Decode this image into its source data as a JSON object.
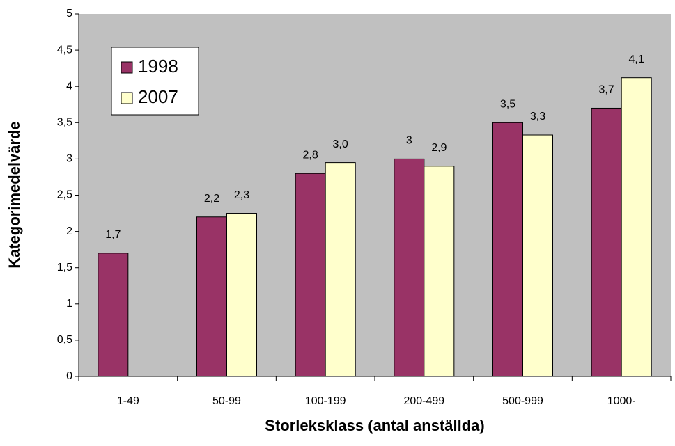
{
  "chart_data": {
    "type": "bar",
    "xlabel": "Storleksklass (antal anställda)",
    "ylabel": "Kategorimedelvärde",
    "categories": [
      "1-49",
      "50-99",
      "100-199",
      "200-499",
      "500-999",
      "1000-"
    ],
    "series": [
      {
        "name": "1998",
        "color": "#993366",
        "values": [
          1.7,
          2.2,
          2.8,
          3,
          3.5,
          3.7
        ],
        "value_labels": [
          "1,7",
          "2,2",
          "2,8",
          "3",
          "3,5",
          "3,7"
        ]
      },
      {
        "name": "2007",
        "color": "#ffffcc",
        "values": [
          null,
          2.25,
          2.95,
          2.9,
          3.33,
          4.12
        ],
        "value_labels": [
          null,
          "2,3",
          "3,0",
          "2,9",
          "3,3",
          "4,1"
        ]
      }
    ],
    "ylim": [
      0,
      5
    ],
    "yticks": [
      0,
      {
        "value": 0.5,
        "label": "0,5"
      },
      1,
      {
        "value": 1.5,
        "label": "1,5"
      },
      2,
      {
        "value": 2.5,
        "label": "2,5"
      },
      3,
      {
        "value": 3.5,
        "label": "3,5"
      },
      4,
      {
        "value": 4.5,
        "label": "4,5"
      },
      5
    ],
    "grid": false,
    "legend": "upper left",
    "background": "#c0c0c0"
  }
}
